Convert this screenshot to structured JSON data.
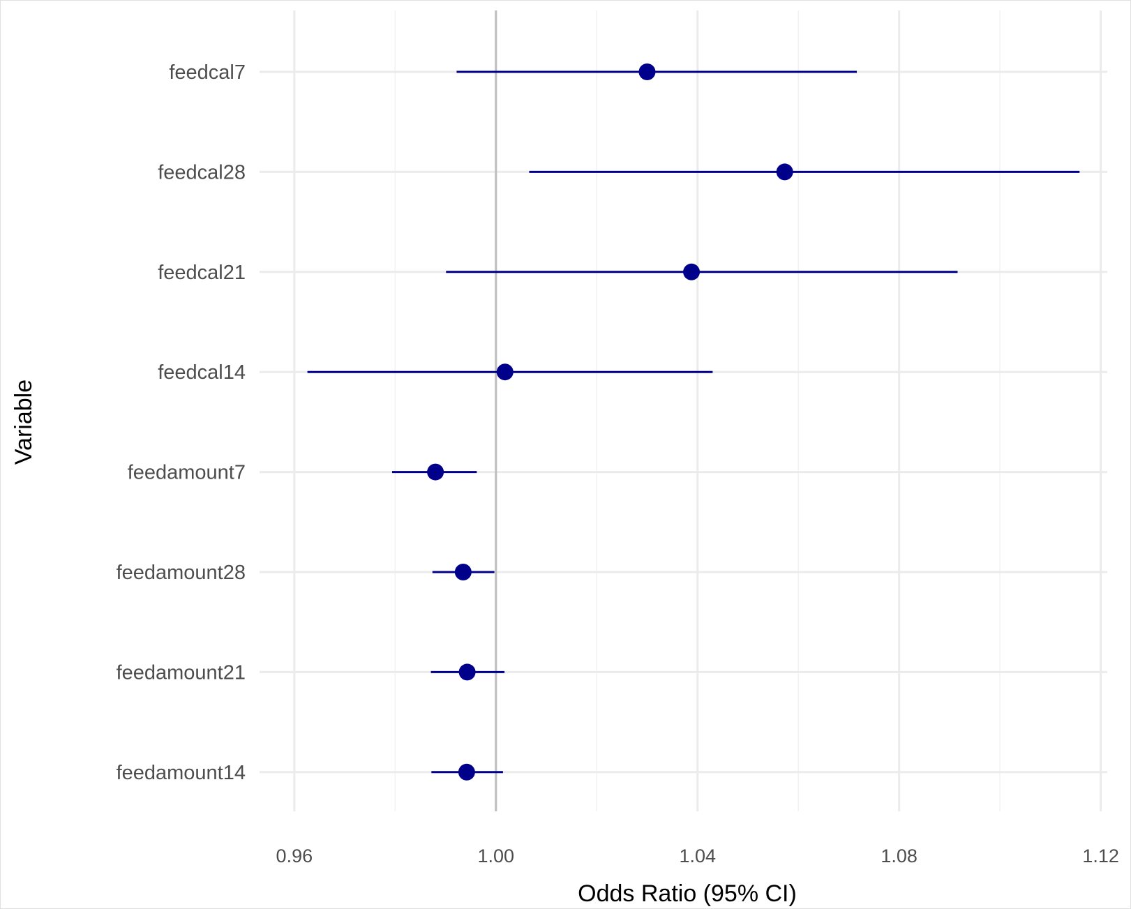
{
  "chart_data": {
    "type": "forest",
    "xlabel": "Odds Ratio (95% CI)",
    "ylabel": "Variable",
    "xlim": [
      0.9531,
      1.1213
    ],
    "x_ticks": [
      {
        "value": 0.96,
        "label": "0.96"
      },
      {
        "value": 1.0,
        "label": "1.00"
      },
      {
        "value": 1.04,
        "label": "1.04"
      },
      {
        "value": 1.08,
        "label": "1.08"
      },
      {
        "value": 1.12,
        "label": "1.12"
      }
    ],
    "x_minor_ticks": [
      0.98,
      1.02,
      1.06,
      1.1
    ],
    "reference_line": 1.0,
    "grid": true,
    "categories": [
      "feedcal7",
      "feedcal28",
      "feedcal21",
      "feedcal14",
      "feedamount7",
      "feedamount28",
      "feedamount21",
      "feedamount14"
    ],
    "series": [
      {
        "estimate": [
          1.03,
          1.0573,
          1.0388,
          1.0018,
          0.988,
          0.9935,
          0.9943,
          0.9942
        ],
        "lower": [
          0.9922,
          1.0066,
          0.9901,
          0.9626,
          0.9794,
          0.9874,
          0.9871,
          0.9872
        ],
        "upper": [
          1.0716,
          1.1158,
          1.0916,
          1.043,
          0.9962,
          0.9997,
          1.0017,
          1.0014
        ]
      }
    ],
    "colors": {
      "point": "#00008b",
      "ci_line": "#00008b",
      "reference_line": "#bebebe",
      "grid_major": "#ebebeb",
      "grid_minor": "#f2f2f2",
      "frame": "#e0e0e0"
    }
  }
}
